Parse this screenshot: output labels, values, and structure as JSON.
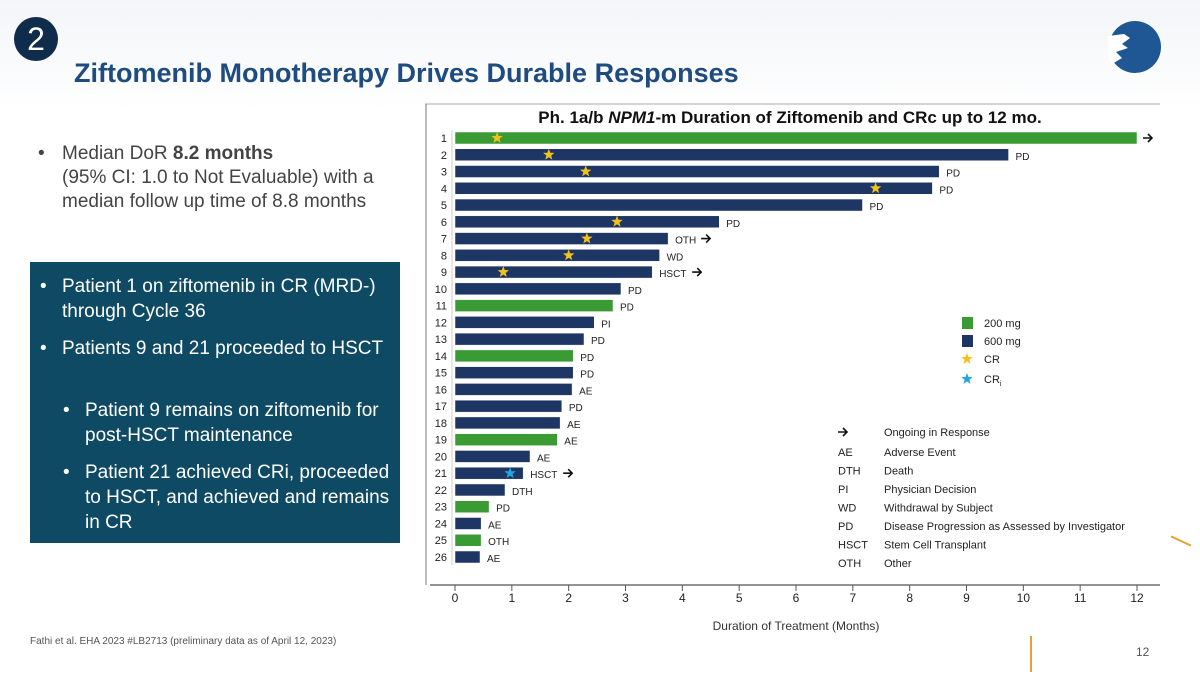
{
  "slide": {
    "section_number": "2",
    "title": "Ziftomenib Monotherapy Drives Durable Responses",
    "page_number": "12",
    "reference": "Fathi et al. EHA 2023 #LB2713 (preliminary data as of April 12, 2023)",
    "brand_color": "#1e4b80",
    "box_color": "#0e4a63"
  },
  "bullets": {
    "first": {
      "prefix": "Median DoR ",
      "bold": "8.2 months",
      "rest": "(95% CI: 1.0 to Not Evaluable) with a median follow up time of 8.8 months"
    },
    "box_items": [
      {
        "text": "Patient 1 on ziftomenib in CR (MRD-) through Cycle 36",
        "level": 1
      },
      {
        "text": "Patients 9 and 21 proceeded to HSCT",
        "level": 1
      },
      {
        "text": "Patient 9 remains on ziftomenib for post-HSCT maintenance",
        "level": 2
      },
      {
        "text": "Patient 21 achieved CRi, proceeded to HSCT, and achieved and remains in CR",
        "level": 2
      }
    ]
  },
  "chart_data": {
    "type": "bar",
    "orientation": "horizontal",
    "title": "Ph. 1a/b NPM1-m Duration of Ziftomenib and CRc up to 12 mo.",
    "title_parts": [
      "Ph. 1a/b ",
      "NPM1",
      "-m Duration of Ziftomenib and CRc up to 12 mo."
    ],
    "xlabel": "Duration of Treatment (Months)",
    "xlim": [
      0,
      12
    ],
    "xticks": [
      0,
      1,
      2,
      3,
      4,
      5,
      6,
      7,
      8,
      9,
      10,
      11,
      12
    ],
    "dose_colors": {
      "200 mg": "#3a9b35",
      "600 mg": "#1e3664"
    },
    "marker_colors": {
      "CR": "#f2c21b",
      "CRi": "#1ea7e1"
    },
    "patients": [
      {
        "id": "1",
        "dose": "200 mg",
        "months": 12.0,
        "cr": 0.74,
        "reason": "",
        "ongoing": true
      },
      {
        "id": "2",
        "dose": "600 mg",
        "months": 9.74,
        "cr": 1.65,
        "reason": "PD",
        "ongoing": false
      },
      {
        "id": "3",
        "dose": "600 mg",
        "months": 8.52,
        "cr": 2.3,
        "reason": "PD",
        "ongoing": false
      },
      {
        "id": "4",
        "dose": "600 mg",
        "months": 8.4,
        "cr": 7.4,
        "reason": "PD",
        "ongoing": false
      },
      {
        "id": "5",
        "dose": "600 mg",
        "months": 7.17,
        "reason": "PD",
        "ongoing": false
      },
      {
        "id": "6",
        "dose": "600 mg",
        "months": 4.65,
        "cr": 2.85,
        "reason": "PD",
        "ongoing": false
      },
      {
        "id": "7",
        "dose": "600 mg",
        "months": 3.75,
        "cr": 2.32,
        "reason": "OTH",
        "ongoing": true
      },
      {
        "id": "8",
        "dose": "600 mg",
        "months": 3.6,
        "cr": 2.0,
        "reason": "WD",
        "ongoing": false
      },
      {
        "id": "9",
        "dose": "600 mg",
        "months": 3.47,
        "cr": 0.85,
        "reason": "HSCT",
        "ongoing": true
      },
      {
        "id": "10",
        "dose": "600 mg",
        "months": 2.92,
        "reason": "PD",
        "ongoing": false
      },
      {
        "id": "11",
        "dose": "200 mg",
        "months": 2.78,
        "reason": "PD",
        "ongoing": false
      },
      {
        "id": "12",
        "dose": "600 mg",
        "months": 2.45,
        "reason": "PI",
        "ongoing": false
      },
      {
        "id": "13",
        "dose": "600 mg",
        "months": 2.27,
        "reason": "PD",
        "ongoing": false
      },
      {
        "id": "14",
        "dose": "200 mg",
        "months": 2.08,
        "reason": "PD",
        "ongoing": false
      },
      {
        "id": "15",
        "dose": "600 mg",
        "months": 2.08,
        "reason": "PD",
        "ongoing": false
      },
      {
        "id": "16",
        "dose": "600 mg",
        "months": 2.06,
        "reason": "AE",
        "ongoing": false
      },
      {
        "id": "17",
        "dose": "600 mg",
        "months": 1.88,
        "reason": "PD",
        "ongoing": false
      },
      {
        "id": "18",
        "dose": "600 mg",
        "months": 1.85,
        "reason": "AE",
        "ongoing": false
      },
      {
        "id": "19",
        "dose": "200 mg",
        "months": 1.8,
        "reason": "AE",
        "ongoing": false
      },
      {
        "id": "20",
        "dose": "600 mg",
        "months": 1.32,
        "reason": "AE",
        "ongoing": false
      },
      {
        "id": "21",
        "dose": "600 mg",
        "months": 1.2,
        "cri": 0.97,
        "reason": "HSCT",
        "ongoing": true
      },
      {
        "id": "22",
        "dose": "600 mg",
        "months": 0.88,
        "reason": "DTH",
        "ongoing": false
      },
      {
        "id": "23",
        "dose": "200 mg",
        "months": 0.6,
        "reason": "PD",
        "ongoing": false
      },
      {
        "id": "24",
        "dose": "600 mg",
        "months": 0.46,
        "reason": "AE",
        "ongoing": false
      },
      {
        "id": "25",
        "dose": "200 mg",
        "months": 0.46,
        "reason": "OTH",
        "ongoing": false
      },
      {
        "id": "26",
        "dose": "600 mg",
        "months": 0.44,
        "reason": "AE",
        "ongoing": false
      }
    ],
    "legend": {
      "placement": "right",
      "dose_items": [
        {
          "label": "200 mg",
          "kind": "200 mg"
        },
        {
          "label": "600 mg",
          "kind": "600 mg"
        }
      ],
      "marker_items": [
        {
          "label": "CR",
          "kind": "CR"
        },
        {
          "label": "CR",
          "sub": "i",
          "kind": "CRi"
        }
      ],
      "abbreviations": [
        {
          "abbr": "→",
          "meaning": "Ongoing in Response"
        },
        {
          "abbr": "AE",
          "meaning": "Adverse Event"
        },
        {
          "abbr": "DTH",
          "meaning": "Death"
        },
        {
          "abbr": "PI",
          "meaning": "Physician Decision"
        },
        {
          "abbr": "WD",
          "meaning": "Withdrawal by Subject"
        },
        {
          "abbr": "PD",
          "meaning": "Disease Progression as Assessed by Investigator"
        },
        {
          "abbr": "HSCT",
          "meaning": "Stem Cell Transplant"
        },
        {
          "abbr": "OTH",
          "meaning": "Other"
        }
      ]
    }
  }
}
